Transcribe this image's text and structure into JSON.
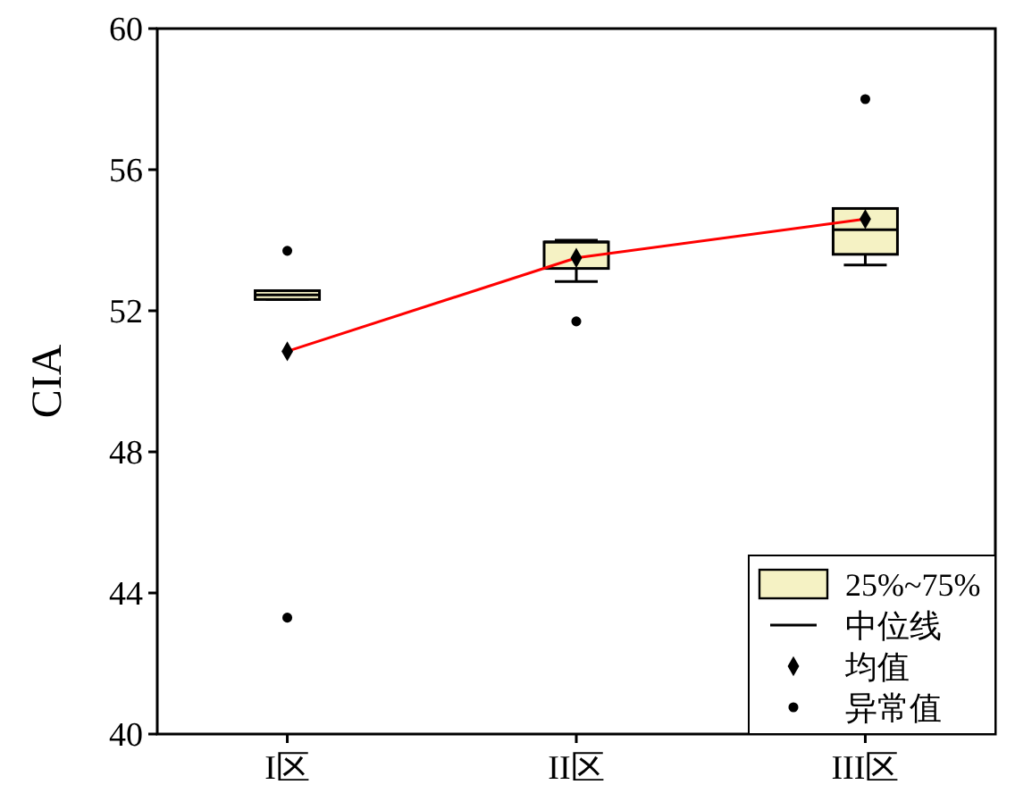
{
  "chart_data": {
    "type": "box",
    "ylabel": "CIA",
    "categories": [
      "I区",
      "II区",
      "III区"
    ],
    "ylim": [
      40,
      60
    ],
    "yticks": [
      40,
      44,
      48,
      52,
      56,
      60
    ],
    "grid": false,
    "legend": "bottom right",
    "series": [
      {
        "type": "box",
        "name": "25%~75%",
        "color": "#f5f2c4",
        "boxes": [
          {
            "low": 52.32,
            "q1": 52.32,
            "median": 52.45,
            "q3": 52.57,
            "high": 52.57
          },
          {
            "low": 52.83,
            "q1": 53.2,
            "median": 53.95,
            "q3": 53.95,
            "high": 54.0
          },
          {
            "low": 53.3,
            "q1": 53.6,
            "median": 54.3,
            "q3": 54.9,
            "high": 54.9
          }
        ]
      },
      {
        "type": "line",
        "color": "#ff0000",
        "x": [
          "I区",
          "II区",
          "III区"
        ],
        "values": [
          50.85,
          53.5,
          54.6
        ]
      },
      {
        "type": "scatter",
        "name": "均值",
        "color": "#000000",
        "marker": "diamond",
        "x": [
          "I区",
          "II区",
          "III区"
        ],
        "values": [
          50.85,
          53.5,
          54.6
        ]
      },
      {
        "type": "scatter",
        "name": "异常值",
        "color": "#000000",
        "marker": "circle",
        "x": [
          "I区",
          "I区",
          "II区",
          "III区"
        ],
        "values": [
          53.7,
          43.3,
          51.7,
          58.0
        ]
      }
    ],
    "annotations": [
      "中位线"
    ]
  }
}
